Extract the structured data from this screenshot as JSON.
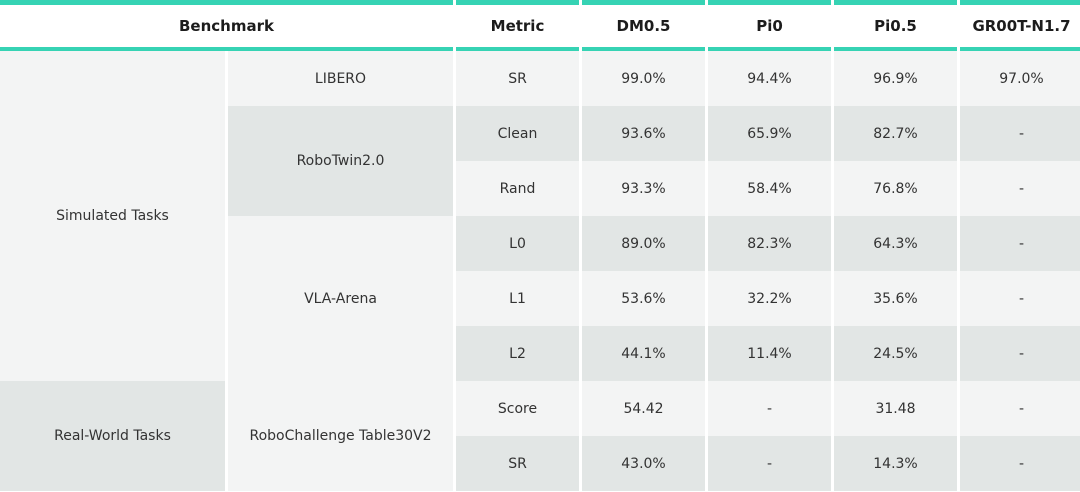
{
  "header": {
    "benchmark": "Benchmark",
    "metric": "Metric",
    "models": [
      "DM0.5",
      "Pi0",
      "Pi0.5",
      "GR00T-N1.7"
    ]
  },
  "groups": [
    {
      "label": "Simulated Tasks"
    },
    {
      "label": "Real-World Tasks"
    }
  ],
  "benchmarks": [
    {
      "label": "LIBERO"
    },
    {
      "label": "RoboTwin2.0"
    },
    {
      "label": "VLA-Arena"
    },
    {
      "label": "RoboChallenge Table30V2"
    }
  ],
  "rows": [
    {
      "metric": "SR",
      "values": [
        "99.0%",
        "94.4%",
        "96.9%",
        "97.0%"
      ]
    },
    {
      "metric": "Clean",
      "values": [
        "93.6%",
        "65.9%",
        "82.7%",
        "-"
      ]
    },
    {
      "metric": "Rand",
      "values": [
        "93.3%",
        "58.4%",
        "76.8%",
        "-"
      ]
    },
    {
      "metric": "L0",
      "values": [
        "89.0%",
        "82.3%",
        "64.3%",
        "-"
      ]
    },
    {
      "metric": "L1",
      "values": [
        "53.6%",
        "32.2%",
        "35.6%",
        "-"
      ]
    },
    {
      "metric": "L2",
      "values": [
        "44.1%",
        "11.4%",
        "24.5%",
        "-"
      ]
    },
    {
      "metric": "Score",
      "values": [
        "54.42",
        "-",
        "31.48",
        "-"
      ]
    },
    {
      "metric": "SR",
      "values": [
        "43.0%",
        "-",
        "14.3%",
        "-"
      ]
    }
  ]
}
